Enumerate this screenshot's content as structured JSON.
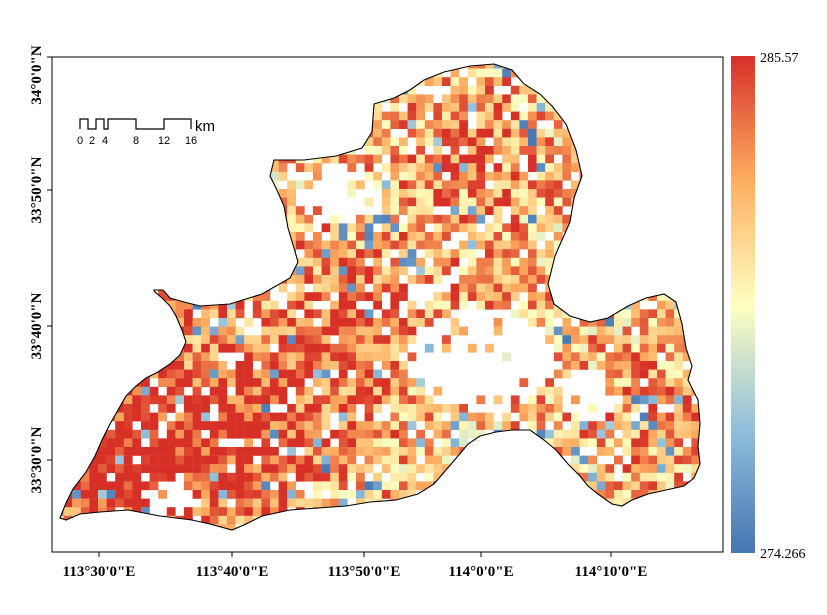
{
  "map": {
    "x_ticks": [
      "113°30'0\"E",
      "113°40'0\"E",
      "113°50'0\"E",
      "114°0'0\"E",
      "114°10'0\"E"
    ],
    "y_ticks": [
      "33°30'0\"N",
      "33°40'0\"N",
      "33°50'0\"N",
      "34°0'0\"N"
    ],
    "colorbar": {
      "max_label": "285.57",
      "min_label": "274.266",
      "range": [
        274.266,
        285.57
      ],
      "colors": [
        "#4575b4",
        "#91bfdb",
        "#ffffbf",
        "#fdae61",
        "#d73027"
      ]
    },
    "scale_bar": {
      "labels": [
        "0",
        "2",
        "4",
        "8",
        "12",
        "16"
      ],
      "unit": "km"
    },
    "colors": {
      "frame": "#000000",
      "boundary": "#000000",
      "background": "#ffffff"
    }
  }
}
